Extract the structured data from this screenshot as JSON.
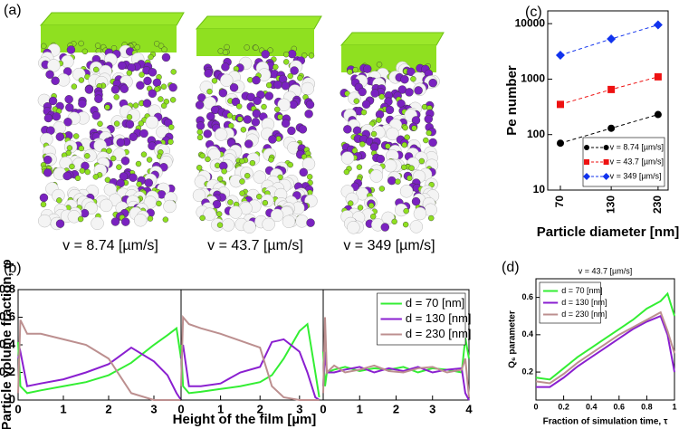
{
  "panel_labels": [
    "(a)",
    "(b)",
    "(c)",
    "(d)"
  ],
  "snapshots": [
    {
      "caption": "v = 8.74 [µm/s]"
    },
    {
      "caption": "v = 43.7 [µm/s]"
    },
    {
      "caption": "v = 349 [µm/s]"
    }
  ],
  "chart_data": [
    {
      "type": "line",
      "ylabel": "Particle volume fraction, φ",
      "x": [
        0,
        0.05,
        0.2,
        0.5,
        1,
        1.5,
        2,
        2.5,
        3,
        3.3,
        3.5,
        3.6
      ],
      "series": [
        {
          "color": "#33ee33",
          "values": [
            0.42,
            0.1,
            0.05,
            0.07,
            0.1,
            0.13,
            0.18,
            0.27,
            0.4,
            0.47,
            0.52,
            0.3
          ]
        },
        {
          "color": "#8a1fd0",
          "values": [
            0.3,
            0.35,
            0.1,
            0.12,
            0.15,
            0.2,
            0.26,
            0.38,
            0.28,
            0.18,
            0.05,
            0
          ]
        },
        {
          "color": "#bc8f8f",
          "values": [
            0.05,
            0.58,
            0.48,
            0.48,
            0.44,
            0.4,
            0.3,
            0.05,
            0,
            0,
            0,
            0
          ]
        }
      ],
      "xlim": [
        0,
        3.6
      ],
      "xticks": [
        0,
        1,
        2,
        3
      ],
      "ylim": [
        0,
        0.8
      ],
      "yticks": [
        0,
        0.2,
        0.4,
        0.6,
        0.8
      ]
    },
    {
      "type": "line",
      "xlabel": "Height of the film [µm]",
      "x": [
        0,
        0.05,
        0.2,
        0.5,
        1,
        1.5,
        2,
        2.3,
        2.6,
        3,
        3.2,
        3.4,
        3.5
      ],
      "series": [
        {
          "color": "#33ee33",
          "values": [
            0.4,
            0.1,
            0.05,
            0.06,
            0.08,
            0.1,
            0.13,
            0.18,
            0.3,
            0.5,
            0.55,
            0.2,
            0.02
          ]
        },
        {
          "color": "#8a1fd0",
          "values": [
            0.3,
            0.4,
            0.1,
            0.1,
            0.12,
            0.2,
            0.24,
            0.42,
            0.44,
            0.35,
            0.2,
            0.02,
            0
          ]
        },
        {
          "color": "#bc8f8f",
          "values": [
            0.1,
            0.6,
            0.55,
            0.52,
            0.48,
            0.43,
            0.38,
            0.1,
            0.02,
            0,
            0,
            0,
            0
          ]
        }
      ],
      "xlim": [
        0,
        3.6
      ],
      "xticks": [
        0,
        1,
        2,
        3
      ],
      "ylim": [
        0,
        0.8
      ]
    },
    {
      "type": "line",
      "x": [
        0,
        0.05,
        0.1,
        0.3,
        0.6,
        1,
        1.4,
        1.8,
        2.2,
        2.6,
        3,
        3.4,
        3.8,
        3.9,
        4
      ],
      "series": [
        {
          "name": "d = 70 [nm]",
          "color": "#33ee33",
          "values": [
            0.35,
            0.1,
            0.2,
            0.22,
            0.24,
            0.21,
            0.23,
            0.22,
            0.24,
            0.2,
            0.23,
            0.22,
            0.2,
            0.45,
            0.3
          ]
        },
        {
          "name": "d = 130 [nm]",
          "color": "#8a1fd0",
          "values": [
            0.1,
            0.35,
            0.2,
            0.2,
            0.22,
            0.24,
            0.2,
            0.23,
            0.21,
            0.24,
            0.2,
            0.22,
            0.23,
            0.05,
            0
          ]
        },
        {
          "name": "d = 230 [nm]",
          "color": "#bc8f8f",
          "values": [
            0.05,
            0.6,
            0.2,
            0.25,
            0.2,
            0.22,
            0.25,
            0.21,
            0.2,
            0.23,
            0.24,
            0.2,
            0.22,
            0.3,
            0.02
          ]
        }
      ],
      "xlim": [
        0,
        4
      ],
      "xticks": [
        0,
        1,
        2,
        3,
        4
      ],
      "ylim": [
        0,
        0.8
      ],
      "legend": "upper right"
    },
    {
      "type": "line",
      "xlabel": "Particle diameter [nm]",
      "ylabel": "Pe number",
      "x": [
        70,
        130,
        230
      ],
      "series": [
        {
          "name": "v = 8.74 [µm/s]",
          "color": "#000000",
          "marker": "circle",
          "values": [
            70,
            130,
            230
          ]
        },
        {
          "name": "v = 43.7 [µm/s]",
          "color": "#ee1111",
          "marker": "square",
          "values": [
            350,
            650,
            1100
          ]
        },
        {
          "name": "v = 349 [µm/s]",
          "color": "#1133ee",
          "marker": "diamond",
          "values": [
            2700,
            5300,
            9500
          ]
        }
      ],
      "dashed": true,
      "xlog": true,
      "ylog": true,
      "xlim": [
        60,
        260
      ],
      "xticks": [
        70,
        130,
        230
      ],
      "ylim": [
        10,
        17000
      ],
      "yticks": [
        10,
        100,
        1000,
        10000
      ],
      "legend": "lower right"
    },
    {
      "type": "line",
      "title": "v = 43.7 [µm/s]",
      "xlabel": "Fraction of simulation time, τ",
      "ylabel": "Q₆ parameter",
      "x": [
        0,
        0.1,
        0.2,
        0.3,
        0.4,
        0.5,
        0.6,
        0.7,
        0.8,
        0.9,
        0.95,
        1
      ],
      "series": [
        {
          "name": "d = 70 [nm]",
          "color": "#33ee33",
          "values": [
            0.17,
            0.16,
            0.22,
            0.28,
            0.33,
            0.38,
            0.43,
            0.48,
            0.54,
            0.58,
            0.62,
            0.5
          ]
        },
        {
          "name": "d = 130 [nm]",
          "color": "#8a1fd0",
          "values": [
            0.12,
            0.12,
            0.17,
            0.23,
            0.28,
            0.33,
            0.38,
            0.43,
            0.47,
            0.5,
            0.4,
            0.2
          ]
        },
        {
          "name": "d = 230 [nm]",
          "color": "#bc8f8f",
          "values": [
            0.15,
            0.14,
            0.19,
            0.25,
            0.3,
            0.35,
            0.4,
            0.44,
            0.48,
            0.52,
            0.42,
            0.3
          ]
        }
      ],
      "xlim": [
        0,
        1
      ],
      "xticks": [
        0,
        0.2,
        0.4,
        0.6,
        0.8,
        1
      ],
      "ylim": [
        0.05,
        0.7
      ],
      "yticks": [
        0.2,
        0.4,
        0.6
      ],
      "legend": "upper left"
    }
  ]
}
